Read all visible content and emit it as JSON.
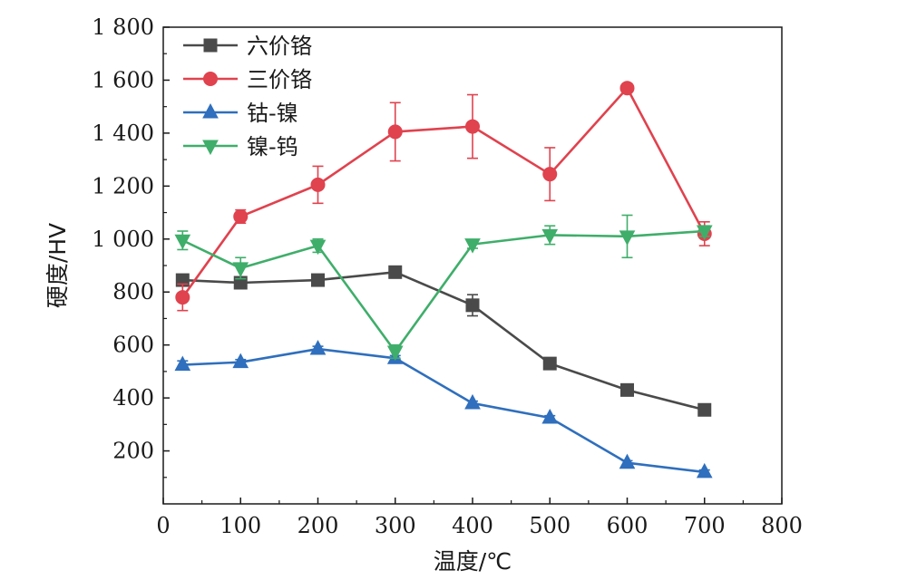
{
  "chart_data": {
    "type": "line",
    "title": "",
    "xlabel": "温度/℃",
    "ylabel": "硬度/HV",
    "xlim": [
      0,
      800
    ],
    "ylim": [
      0,
      1800
    ],
    "x_ticks": [
      0,
      100,
      200,
      300,
      400,
      500,
      600,
      700,
      800
    ],
    "y_ticks": [
      200,
      400,
      600,
      800,
      1000,
      1200,
      1400,
      1600,
      1800
    ],
    "y_tick_labels": [
      "200",
      "400",
      "600",
      "800",
      "1 000",
      "1 200",
      "1 400",
      "1 600",
      "1 800"
    ],
    "x_tick_labels": [
      "0",
      "100",
      "200",
      "300",
      "400",
      "500",
      "600",
      "700",
      "800"
    ],
    "grid": false,
    "legend_position": "top-left",
    "series": [
      {
        "name": "六价铬",
        "color": "#4a4a4a",
        "marker": "square",
        "x": [
          25,
          100,
          200,
          300,
          400,
          500,
          600,
          700
        ],
        "values": [
          845,
          835,
          845,
          875,
          750,
          530,
          430,
          355
        ],
        "errors": [
          10,
          8,
          20,
          22,
          40,
          15,
          8,
          8
        ]
      },
      {
        "name": "三价铬",
        "color": "#e0424e",
        "marker": "circle",
        "x": [
          25,
          100,
          200,
          300,
          400,
          500,
          600,
          700
        ],
        "values": [
          780,
          1085,
          1205,
          1405,
          1425,
          1245,
          1570,
          1020
        ],
        "errors": [
          50,
          25,
          70,
          110,
          120,
          100,
          15,
          45
        ]
      },
      {
        "name": "钴-镍",
        "color": "#2f6fbd",
        "marker": "triangle-up",
        "x": [
          25,
          100,
          200,
          300,
          400,
          500,
          600,
          700
        ],
        "values": [
          525,
          535,
          585,
          550,
          380,
          325,
          155,
          120
        ],
        "errors": [
          15,
          10,
          10,
          10,
          8,
          8,
          8,
          8
        ]
      },
      {
        "name": "镍-钨",
        "color": "#3fae6a",
        "marker": "triangle-down",
        "x": [
          25,
          100,
          200,
          300,
          400,
          500,
          600,
          700
        ],
        "values": [
          995,
          890,
          975,
          575,
          980,
          1015,
          1010,
          1030
        ],
        "errors": [
          35,
          40,
          25,
          25,
          15,
          35,
          80,
          20
        ]
      }
    ]
  }
}
